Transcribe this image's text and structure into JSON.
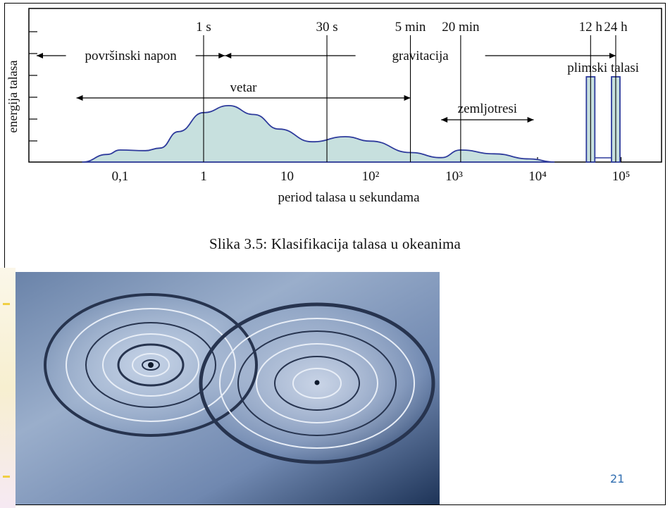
{
  "chart_data": {
    "type": "area",
    "xscale": "log",
    "x_ticks": [
      "0,1",
      "1",
      "10",
      "10²",
      "10³",
      "10⁴",
      "10⁵"
    ],
    "x_range_seconds": [
      0.01,
      200000
    ],
    "xlabel": "period talasa u sekundama",
    "ylabel": "energija talasa",
    "time_markers": [
      {
        "label": "1 s",
        "period_s": 1
      },
      {
        "label": "30 s",
        "period_s": 30
      },
      {
        "label": "5 min",
        "period_s": 300
      },
      {
        "label": "20 min",
        "period_s": 1200
      },
      {
        "label": "12 h",
        "period_s": 43200
      },
      {
        "label": "24 h",
        "period_s": 86400
      }
    ],
    "regions": [
      {
        "label": "površinski napon",
        "from_s": 0.01,
        "to_s": 1.8
      },
      {
        "label": "gravitacija",
        "from_s": 1.8,
        "to_s": 86400
      },
      {
        "label": "vetar",
        "from_s": 0.03,
        "to_s": 300
      },
      {
        "label": "zemljotresi",
        "from_s": 700,
        "to_s": 9000
      },
      {
        "label": "plimski talasi",
        "from_s": 43200,
        "to_s": 86400
      }
    ],
    "energy_curve": [
      {
        "x": 0.035,
        "y": 0.0
      },
      {
        "x": 0.07,
        "y": 0.12
      },
      {
        "x": 0.1,
        "y": 0.19
      },
      {
        "x": 0.2,
        "y": 0.18
      },
      {
        "x": 0.3,
        "y": 0.22
      },
      {
        "x": 0.5,
        "y": 0.48
      },
      {
        "x": 1.0,
        "y": 0.78
      },
      {
        "x": 2.0,
        "y": 0.89
      },
      {
        "x": 4.0,
        "y": 0.75
      },
      {
        "x": 8.0,
        "y": 0.52
      },
      {
        "x": 20.0,
        "y": 0.32
      },
      {
        "x": 50.0,
        "y": 0.4
      },
      {
        "x": 100.0,
        "y": 0.33
      },
      {
        "x": 300.0,
        "y": 0.15
      },
      {
        "x": 700.0,
        "y": 0.07
      },
      {
        "x": 1200.0,
        "y": 0.19
      },
      {
        "x": 3000.0,
        "y": 0.13
      },
      {
        "x": 8000.0,
        "y": 0.05
      },
      {
        "x": 16000.0,
        "y": 0.0
      }
    ],
    "tide_peaks": [
      {
        "label": "12 h",
        "period_s": 43200,
        "y": 1.0
      },
      {
        "label": "24 h",
        "period_s": 86400,
        "y": 1.0
      }
    ],
    "fill_color": "#c7e0de",
    "line_color": "#2e3b9c",
    "grid": false
  },
  "caption": "Slika 3.5: Klasifikacija talasa u okeanima",
  "page_number": "21"
}
